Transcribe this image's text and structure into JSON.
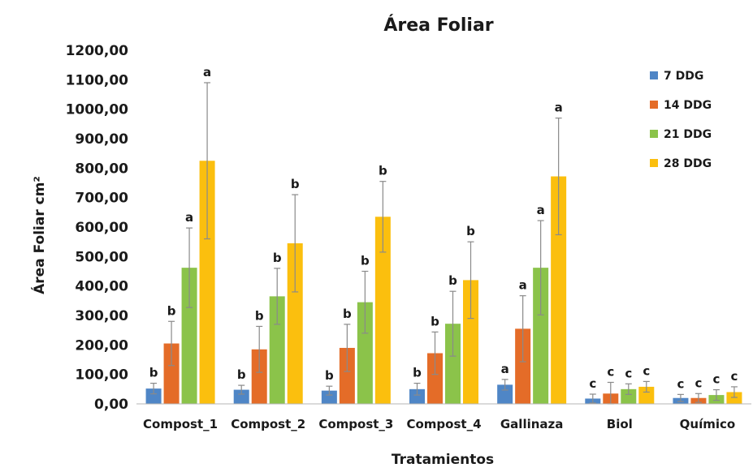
{
  "chart_data": {
    "type": "bar",
    "title": "Área Foliar",
    "xlabel": "Tratamientos",
    "ylabel": "Área Foliar cm²",
    "ylim": [
      0,
      1200
    ],
    "yticks": [
      "0,00",
      "100,00",
      "200,00",
      "300,00",
      "400,00",
      "500,00",
      "600,00",
      "700,00",
      "800,00",
      "900,00",
      "1000,00",
      "1100,00",
      "1200,00"
    ],
    "categories": [
      "Compost_1",
      "Compost_2",
      "Compost_3",
      "Compost_4",
      "Gallinaza",
      "Biol",
      "Químico"
    ],
    "legend_position": "right",
    "grid": false,
    "series": [
      {
        "name": "7 DDG",
        "color": "#4f86c6",
        "values": [
          52,
          48,
          45,
          50,
          65,
          18,
          20
        ],
        "errors": [
          18,
          15,
          15,
          20,
          18,
          15,
          12
        ],
        "letters": [
          "b",
          "b",
          "b",
          "b",
          "a",
          "c",
          "c"
        ]
      },
      {
        "name": "14 DDG",
        "color": "#e46c28",
        "values": [
          205,
          185,
          190,
          172,
          255,
          35,
          20
        ],
        "errors": [
          75,
          78,
          80,
          72,
          112,
          38,
          15
        ],
        "letters": [
          "b",
          "b",
          "b",
          "b",
          "a",
          "c",
          "c"
        ]
      },
      {
        "name": "21 DDG",
        "color": "#8bc34a",
        "values": [
          462,
          365,
          345,
          272,
          462,
          50,
          30
        ],
        "errors": [
          135,
          95,
          105,
          110,
          160,
          18,
          18
        ],
        "letters": [
          "a",
          "b",
          "b",
          "b",
          "a",
          "c",
          "c"
        ]
      },
      {
        "name": "28 DDG",
        "color": "#fbbf0e",
        "values": [
          825,
          545,
          635,
          420,
          772,
          58,
          40
        ],
        "errors": [
          265,
          165,
          120,
          130,
          198,
          18,
          18
        ],
        "letters": [
          "a",
          "b",
          "b",
          "b",
          "a",
          "c",
          "c"
        ]
      }
    ]
  }
}
